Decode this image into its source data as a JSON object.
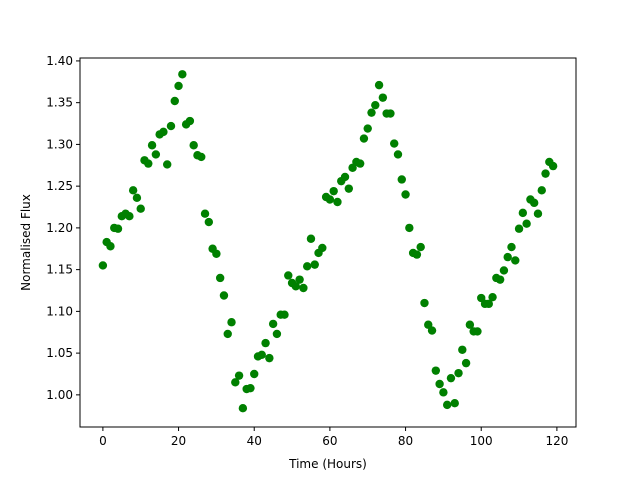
{
  "chart_data": {
    "type": "scatter",
    "title": "",
    "xlabel": "Time (Hours)",
    "ylabel": "Normalised Flux",
    "xlim": [
      -6.05,
      125.05
    ],
    "ylim": [
      0.9615,
      1.4035
    ],
    "xticks": [
      0,
      20,
      40,
      60,
      80,
      100,
      120
    ],
    "yticks": [
      1.0,
      1.05,
      1.1,
      1.15,
      1.2,
      1.25,
      1.3,
      1.35,
      1.4
    ],
    "xtick_labels": [
      "0",
      "20",
      "40",
      "60",
      "80",
      "100",
      "120"
    ],
    "ytick_labels": [
      "1.00",
      "1.05",
      "1.10",
      "1.15",
      "1.20",
      "1.25",
      "1.30",
      "1.35",
      "1.40"
    ],
    "grid": false,
    "legend": "none",
    "marker_color": "#008000",
    "series": [
      {
        "x": [
          0,
          1,
          2,
          3,
          4,
          5,
          6,
          7,
          8,
          9,
          10,
          11,
          12,
          13,
          14,
          15,
          16,
          17,
          18,
          19,
          20,
          21,
          22,
          23,
          24,
          25,
          26,
          27,
          28,
          29,
          30,
          31,
          32,
          33,
          34,
          35,
          36,
          37,
          38,
          39,
          40,
          41,
          42,
          43,
          44,
          45,
          46,
          47,
          48,
          49,
          50,
          51,
          52,
          53,
          54,
          55,
          56,
          57,
          58,
          59,
          60,
          61,
          62,
          63,
          64,
          65,
          66,
          67,
          68,
          69,
          70,
          71,
          72,
          73,
          74,
          75,
          76,
          77,
          78,
          79,
          80,
          81,
          82,
          83,
          84,
          85,
          86,
          87,
          88,
          89,
          90,
          91,
          92,
          93,
          94,
          95,
          96,
          97,
          98,
          99,
          100,
          101,
          102,
          103,
          104,
          105,
          106,
          107,
          108,
          109,
          110,
          111,
          112,
          113,
          114,
          115,
          116,
          117,
          118,
          119
        ],
        "y": [
          1.155,
          1.183,
          1.178,
          1.2,
          1.199,
          1.214,
          1.217,
          1.214,
          1.245,
          1.236,
          1.223,
          1.281,
          1.277,
          1.299,
          1.288,
          1.312,
          1.315,
          1.276,
          1.322,
          1.352,
          1.37,
          1.384,
          1.324,
          1.328,
          1.299,
          1.287,
          1.285,
          1.217,
          1.207,
          1.175,
          1.169,
          1.14,
          1.119,
          1.073,
          1.087,
          1.015,
          1.023,
          0.984,
          1.007,
          1.008,
          1.025,
          1.046,
          1.048,
          1.062,
          1.044,
          1.085,
          1.073,
          1.096,
          1.096,
          1.143,
          1.134,
          1.13,
          1.138,
          1.128,
          1.154,
          1.187,
          1.156,
          1.17,
          1.176,
          1.237,
          1.234,
          1.244,
          1.231,
          1.256,
          1.261,
          1.247,
          1.272,
          1.279,
          1.277,
          1.307,
          1.319,
          1.338,
          1.347,
          1.371,
          1.356,
          1.337,
          1.337,
          1.301,
          1.288,
          1.258,
          1.24,
          1.2,
          1.17,
          1.168,
          1.177,
          1.11,
          1.084,
          1.077,
          1.029,
          1.013,
          1.003,
          0.988,
          1.02,
          0.99,
          1.026,
          1.054,
          1.038,
          1.084,
          1.076,
          1.076,
          1.116,
          1.109,
          1.109,
          1.117,
          1.14,
          1.138,
          1.149,
          1.165,
          1.177,
          1.161,
          1.199,
          1.218,
          1.205,
          1.234,
          1.23,
          1.217,
          1.245,
          1.265,
          1.279,
          1.274
        ]
      }
    ]
  }
}
